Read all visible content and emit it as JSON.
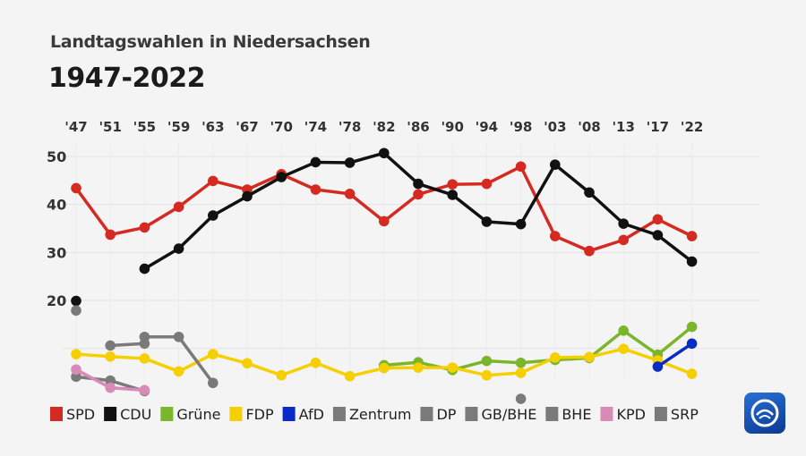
{
  "header": {
    "subtitle": "Landtagswahlen in Niedersachsen",
    "title": "1947-2022"
  },
  "chart_data": {
    "type": "line",
    "title": "Landtagswahlen in Niedersachsen",
    "subtitle": "1947-2022",
    "xlabel": "",
    "ylabel": "",
    "categories": [
      "'47",
      "'51",
      "'55",
      "'59",
      "'63",
      "'67",
      "'70",
      "'74",
      "'78",
      "'82",
      "'86",
      "'90",
      "'94",
      "'98",
      "'03",
      "'08",
      "'13",
      "'17",
      "'22"
    ],
    "yticks": [
      20,
      30,
      40,
      50
    ],
    "ylim": [
      0,
      52
    ],
    "grid": true,
    "legend_position": "bottom",
    "series": [
      {
        "name": "SPD",
        "color": "#d52a22",
        "values": [
          43.4,
          33.7,
          35.2,
          39.5,
          44.9,
          43.1,
          46.3,
          43.1,
          42.2,
          36.5,
          42.1,
          44.2,
          44.3,
          47.9,
          33.4,
          30.3,
          32.6,
          36.9,
          33.4
        ]
      },
      {
        "name": "CDU",
        "color": "#111111",
        "values": [
          19.9,
          null,
          26.6,
          30.8,
          37.7,
          41.7,
          45.7,
          48.8,
          48.7,
          50.7,
          44.3,
          42.0,
          36.4,
          35.9,
          48.3,
          42.5,
          36.0,
          33.6,
          28.1
        ]
      },
      {
        "name": "Grüne",
        "color": "#7ab52a",
        "values": [
          null,
          null,
          null,
          null,
          null,
          null,
          null,
          null,
          null,
          6.5,
          7.1,
          5.5,
          7.4,
          7.0,
          7.6,
          8.0,
          13.7,
          8.7,
          14.5
        ]
      },
      {
        "name": "FDP",
        "color": "#f6cf00",
        "values": [
          8.8,
          8.3,
          7.9,
          5.2,
          8.8,
          6.9,
          4.4,
          7.0,
          4.2,
          5.9,
          6.0,
          6.0,
          4.4,
          4.9,
          8.1,
          8.2,
          9.9,
          7.5,
          4.7
        ]
      },
      {
        "name": "AfD",
        "color": "#0a2cc6",
        "values": [
          null,
          null,
          null,
          null,
          null,
          null,
          null,
          null,
          null,
          null,
          null,
          null,
          null,
          null,
          null,
          null,
          null,
          6.2,
          11.0
        ]
      },
      {
        "name": "Zentrum",
        "color": "#7a7a7a",
        "values": [
          4.1,
          3.3,
          1.1,
          null,
          null,
          null,
          null,
          null,
          null,
          null,
          null,
          null,
          null,
          null,
          null,
          null,
          null,
          null,
          null
        ]
      },
      {
        "name": "DP",
        "color": "#7a7a7a",
        "values": [
          17.9,
          null,
          12.4,
          12.4,
          2.8,
          null,
          null,
          null,
          null,
          null,
          null,
          null,
          null,
          null,
          null,
          null,
          null,
          null,
          null
        ]
      },
      {
        "name": "GB/BHE",
        "color": "#7a7a7a",
        "values": [
          null,
          10.6,
          11.0,
          null,
          null,
          null,
          null,
          null,
          null,
          null,
          null,
          null,
          null,
          null,
          null,
          null,
          null,
          null,
          null
        ]
      },
      {
        "name": "BHE",
        "color": "#7a7a7a",
        "values": [
          null,
          null,
          null,
          null,
          null,
          null,
          null,
          null,
          null,
          null,
          null,
          null,
          null,
          -0.5,
          null,
          null,
          null,
          null,
          null
        ]
      },
      {
        "name": "KPD",
        "color": "#d98bb8",
        "values": [
          5.6,
          1.8,
          1.3,
          null,
          null,
          null,
          null,
          null,
          null,
          null,
          null,
          null,
          null,
          null,
          null,
          null,
          null,
          null,
          null
        ]
      },
      {
        "name": "SRP",
        "color": "#7a7a7a",
        "values": [
          null,
          null,
          null,
          null,
          null,
          null,
          null,
          null,
          null,
          null,
          null,
          null,
          null,
          null,
          null,
          null,
          null,
          null,
          null
        ]
      }
    ]
  },
  "branding": {
    "icon": "tagesschau-logo-icon"
  }
}
